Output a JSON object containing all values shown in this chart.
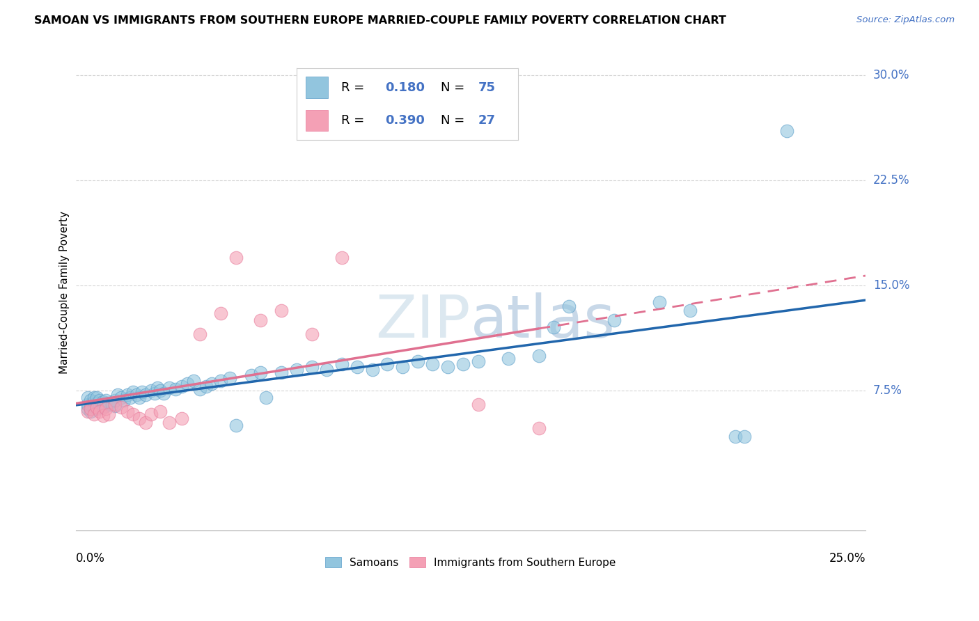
{
  "title": "SAMOAN VS IMMIGRANTS FROM SOUTHERN EUROPE MARRIED-COUPLE FAMILY POVERTY CORRELATION CHART",
  "source": "Source: ZipAtlas.com",
  "ylabel": "Married-Couple Family Poverty",
  "color_blue": "#92c5de",
  "color_pink": "#f4a0b5",
  "color_blue_line": "#2166ac",
  "color_pink_line": "#d6604d",
  "color_blue_text": "#4472c4",
  "watermark_color": "#dce8f0",
  "xlim": [
    -0.003,
    0.258
  ],
  "ylim": [
    -0.025,
    0.315
  ],
  "ytick_positions": [
    0.075,
    0.15,
    0.225,
    0.3
  ],
  "ytick_labels": [
    "7.5%",
    "15.0%",
    "22.5%",
    "30.0%"
  ],
  "samoans_x": [
    0.001,
    0.001,
    0.001,
    0.002,
    0.002,
    0.002,
    0.003,
    0.003,
    0.003,
    0.004,
    0.004,
    0.004,
    0.005,
    0.005,
    0.006,
    0.006,
    0.007,
    0.007,
    0.008,
    0.009,
    0.01,
    0.01,
    0.011,
    0.012,
    0.013,
    0.014,
    0.015,
    0.016,
    0.017,
    0.018,
    0.019,
    0.02,
    0.022,
    0.023,
    0.024,
    0.025,
    0.026,
    0.028,
    0.03,
    0.032,
    0.034,
    0.036,
    0.038,
    0.04,
    0.042,
    0.045,
    0.048,
    0.05,
    0.055,
    0.058,
    0.06,
    0.065,
    0.07,
    0.075,
    0.08,
    0.085,
    0.09,
    0.095,
    0.1,
    0.105,
    0.11,
    0.115,
    0.12,
    0.125,
    0.13,
    0.14,
    0.15,
    0.155,
    0.16,
    0.175,
    0.19,
    0.2,
    0.215,
    0.218,
    0.232
  ],
  "samoans_y": [
    0.062,
    0.065,
    0.07,
    0.06,
    0.065,
    0.068,
    0.063,
    0.067,
    0.07,
    0.062,
    0.066,
    0.07,
    0.064,
    0.068,
    0.063,
    0.067,
    0.064,
    0.068,
    0.066,
    0.065,
    0.064,
    0.068,
    0.072,
    0.07,
    0.068,
    0.072,
    0.07,
    0.074,
    0.072,
    0.07,
    0.074,
    0.072,
    0.075,
    0.073,
    0.077,
    0.075,
    0.073,
    0.077,
    0.076,
    0.078,
    0.08,
    0.082,
    0.076,
    0.078,
    0.08,
    0.082,
    0.084,
    0.05,
    0.086,
    0.088,
    0.07,
    0.088,
    0.09,
    0.092,
    0.09,
    0.094,
    0.092,
    0.09,
    0.094,
    0.092,
    0.096,
    0.094,
    0.092,
    0.094,
    0.096,
    0.098,
    0.1,
    0.12,
    0.135,
    0.125,
    0.138,
    0.132,
    0.042,
    0.042,
    0.26
  ],
  "se_x": [
    0.001,
    0.002,
    0.003,
    0.004,
    0.005,
    0.006,
    0.007,
    0.008,
    0.01,
    0.012,
    0.014,
    0.016,
    0.018,
    0.02,
    0.022,
    0.025,
    0.028,
    0.032,
    0.038,
    0.045,
    0.05,
    0.058,
    0.065,
    0.075,
    0.085,
    0.13,
    0.15
  ],
  "se_y": [
    0.06,
    0.062,
    0.058,
    0.063,
    0.06,
    0.057,
    0.062,
    0.058,
    0.065,
    0.063,
    0.06,
    0.058,
    0.055,
    0.052,
    0.058,
    0.06,
    0.052,
    0.055,
    0.115,
    0.13,
    0.17,
    0.125,
    0.132,
    0.115,
    0.17,
    0.065,
    0.048
  ]
}
